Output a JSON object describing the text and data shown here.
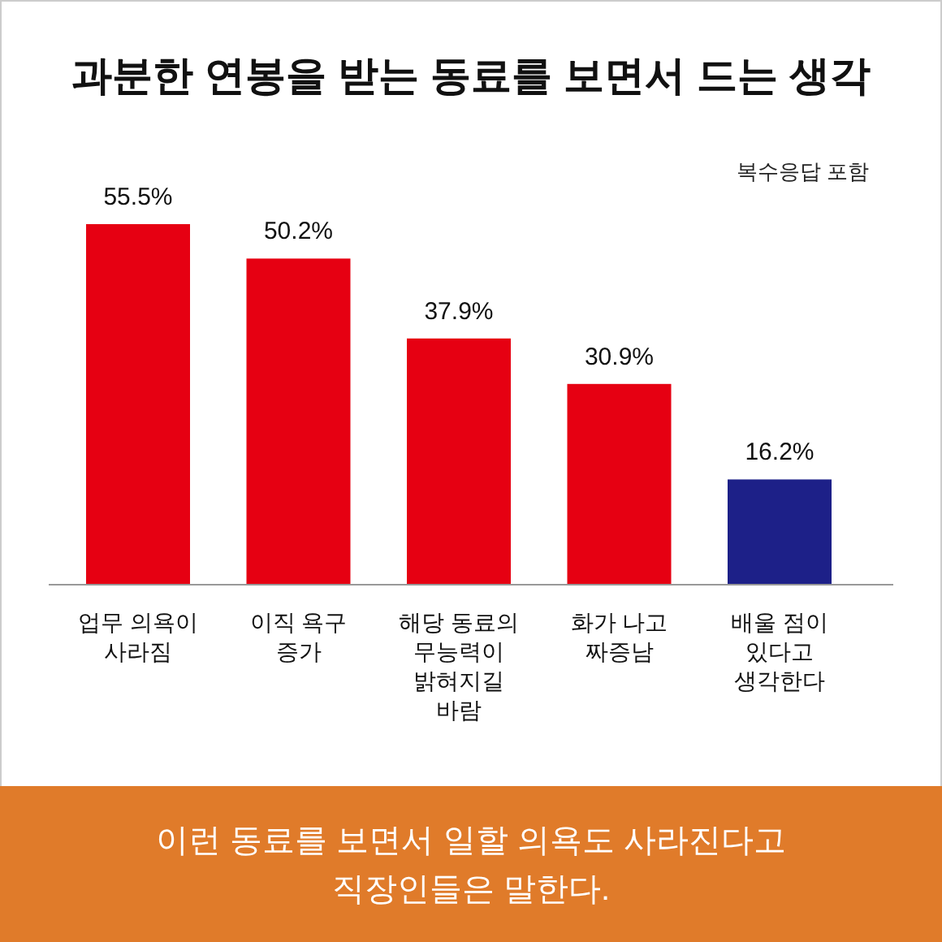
{
  "chart_data": {
    "type": "bar",
    "title": "과분한 연봉을 받는 동료를 보면서 드는 생각",
    "categories": [
      "업무 의욕이\n사라짐",
      "이직 욕구\n증가",
      "해당 동료의\n무능력이\n밝혀지길\n바람",
      "화가 나고\n짜증남",
      "배울 점이\n있다고\n생각한다"
    ],
    "values": [
      55.5,
      50.2,
      37.9,
      30.9,
      16.2
    ],
    "value_labels": [
      "55.5%",
      "50.2%",
      "37.9%",
      "30.9%",
      "16.2%"
    ],
    "colors": [
      "#e60012",
      "#e60012",
      "#e60012",
      "#e60012",
      "#1d2088"
    ],
    "annotations": [
      "복수응답 포함",
      "이런 동료를 보면서 일할 의욕도 사라진다고\n직장인들은 말한다."
    ]
  }
}
